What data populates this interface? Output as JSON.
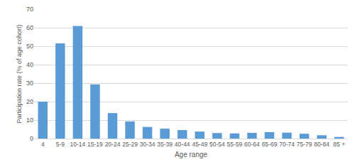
{
  "chart_data": {
    "type": "bar",
    "x_label": "Age range",
    "y_label": "Participation rate (% of age cohort)",
    "categories": [
      "4",
      "5-9",
      "10-14",
      "15-19",
      "20-24",
      "25-29",
      "30-34",
      "35-39",
      "40-44",
      "45-49",
      "50-54",
      "55-59",
      "60-64",
      "65-69",
      "70-74",
      "75-79",
      "80-84",
      "85 +"
    ],
    "values": [
      20,
      51.5,
      61,
      29.3,
      13.8,
      9.3,
      6.3,
      5.4,
      4.6,
      3.8,
      3.0,
      2.8,
      3.1,
      3.5,
      3.2,
      2.6,
      1.8,
      0.9
    ],
    "color": "#5b9bd5",
    "ylim": [
      0,
      70
    ],
    "yticks": [
      0,
      10,
      20,
      30,
      40,
      50,
      60,
      70
    ],
    "grid": true
  }
}
